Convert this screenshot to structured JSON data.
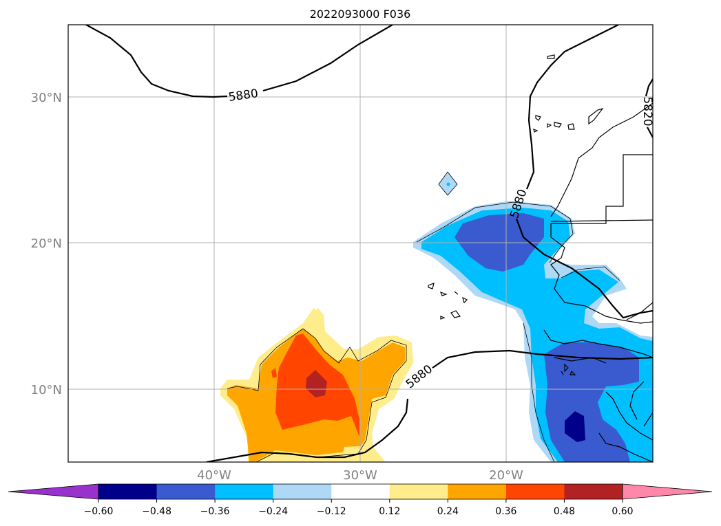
{
  "title": "2022093000 F036",
  "map": {
    "lat_labels": [
      "30°N",
      "20°N",
      "10°N"
    ],
    "lon_labels": [
      "40°W",
      "30°W",
      "20°W"
    ],
    "contour_level": "5880",
    "contour_labels": [
      "5880",
      "5880",
      "5880",
      "5820"
    ],
    "gridlines": true
  },
  "colorbar": {
    "ticks": [
      "−0.60",
      "−0.48",
      "−0.36",
      "−0.24",
      "−0.12",
      "0.12",
      "0.24",
      "0.36",
      "0.48",
      "0.60"
    ],
    "colors": [
      "#9932cc",
      "#00008b",
      "#3a5bcf",
      "#00bfff",
      "#add8f6",
      "#ffffff",
      "#ffec8b",
      "#ffa500",
      "#ff4500",
      "#b22222",
      "#ff88aa"
    ],
    "extend": "both"
  }
}
